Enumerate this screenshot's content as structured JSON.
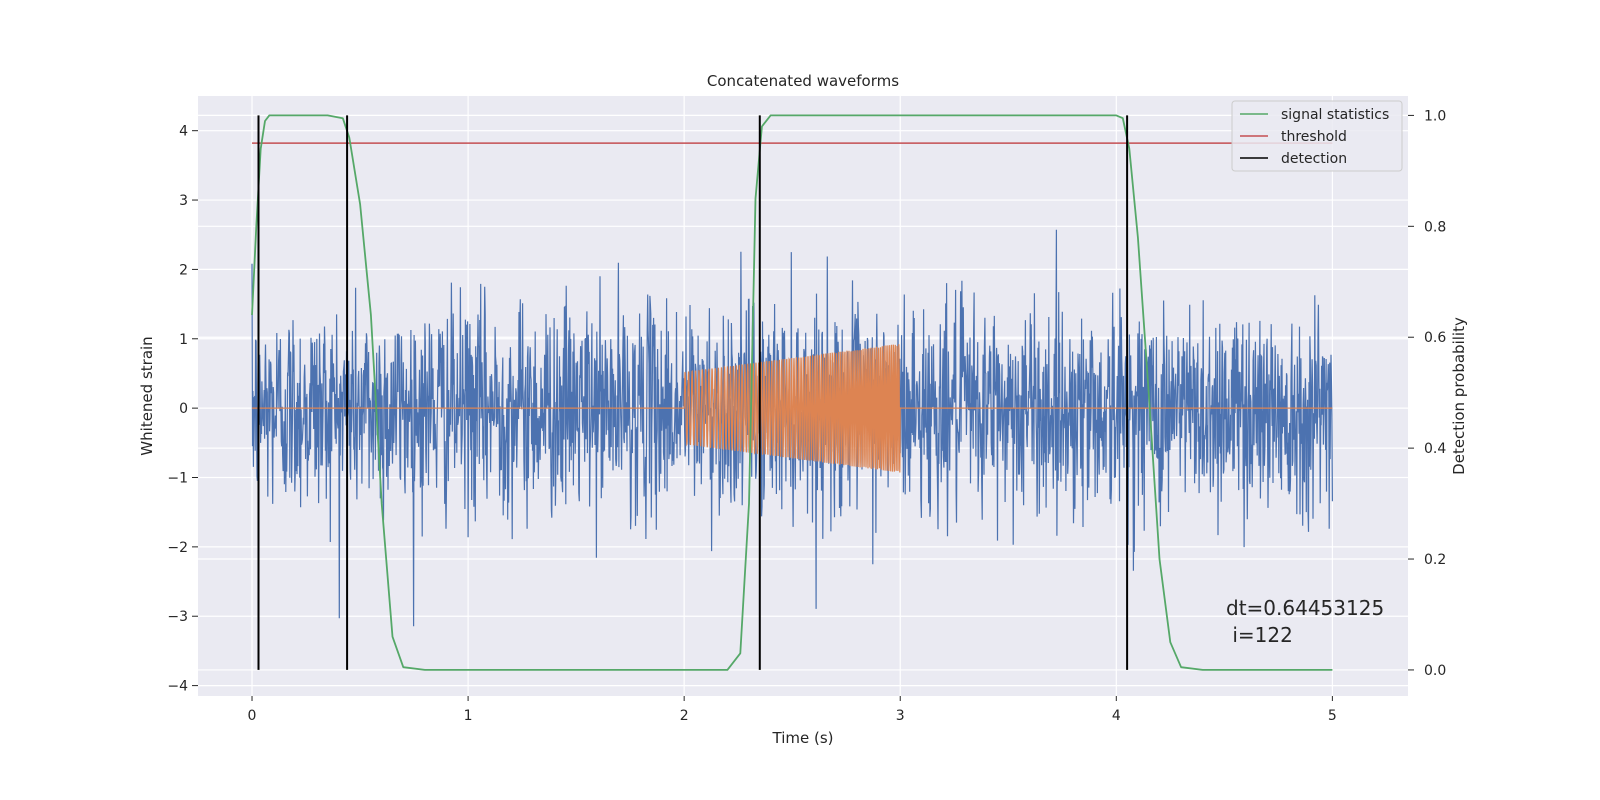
{
  "chart_data": {
    "type": "line",
    "title": "Concatenated waveforms",
    "xlabel": "Time (s)",
    "ylabel": "Whitened strain",
    "ylabel_right": "Detection probability",
    "xlim": [
      -0.25,
      5.35
    ],
    "ylim": [
      -4.15,
      4.5
    ],
    "ylim_right": [
      -0.047,
      1.035
    ],
    "x_ticks": [
      0,
      1,
      2,
      3,
      4,
      5
    ],
    "y_ticks": [
      -4,
      -3,
      -2,
      -1,
      0,
      1,
      2,
      3,
      4
    ],
    "y_ticks_right": [
      0.0,
      0.2,
      0.4,
      0.6,
      0.8,
      1.0
    ],
    "x_tick_labels": [
      "0",
      "1",
      "2",
      "3",
      "4",
      "5"
    ],
    "y_tick_labels": [
      "−4",
      "−3",
      "−2",
      "−1",
      "0",
      "1",
      "2",
      "3",
      "4"
    ],
    "y_tick_labels_right": [
      "0.0",
      "0.2",
      "0.4",
      "0.6",
      "0.8",
      "1.0"
    ],
    "grid": true,
    "legend_position": "top-right",
    "series": [
      {
        "kind": "noise",
        "axis": "left",
        "color": "#4c72b0",
        "x_range": [
          0,
          5
        ],
        "amplitude_std": 0.75,
        "visible_min": -3.7,
        "visible_max": 4.1
      },
      {
        "kind": "chirp",
        "axis": "left",
        "color": "#dd8452",
        "x_range": [
          0,
          5
        ],
        "chirp_start": 2.0,
        "chirp_end": 3.0,
        "amplitude_start": 0.52,
        "amplitude_end": 0.93
      },
      {
        "name": "signal statistics",
        "axis": "right",
        "color": "#55a868",
        "x": [
          0.0,
          0.02,
          0.04,
          0.06,
          0.08,
          0.1,
          0.2,
          0.35,
          0.42,
          0.45,
          0.5,
          0.55,
          0.6,
          0.65,
          0.7,
          0.8,
          1.0,
          2.0,
          2.2,
          2.26,
          2.3,
          2.33,
          2.36,
          2.4,
          2.5,
          3.0,
          4.0,
          4.03,
          4.06,
          4.1,
          4.15,
          4.2,
          4.25,
          4.3,
          4.4,
          5.0
        ],
        "y": [
          0.64,
          0.8,
          0.94,
          0.99,
          1.0,
          1.0,
          1.0,
          1.0,
          0.995,
          0.96,
          0.84,
          0.64,
          0.3,
          0.06,
          0.005,
          0.0,
          0.0,
          0.0,
          0.0,
          0.03,
          0.3,
          0.85,
          0.98,
          1.0,
          1.0,
          1.0,
          1.0,
          0.995,
          0.94,
          0.78,
          0.5,
          0.2,
          0.05,
          0.005,
          0.0,
          0.0
        ]
      },
      {
        "name": "threshold",
        "axis": "right",
        "color": "#c44e52",
        "x": [
          0,
          5
        ],
        "y": [
          0.95,
          0.95
        ]
      },
      {
        "name": "detection",
        "axis": "right",
        "color": "#000000",
        "vlines": [
          0.03,
          0.44,
          2.35,
          4.05
        ],
        "y": [
          0.0,
          1.0
        ]
      }
    ],
    "annotations": [
      "dt=0.64453125",
      " i=122"
    ]
  }
}
